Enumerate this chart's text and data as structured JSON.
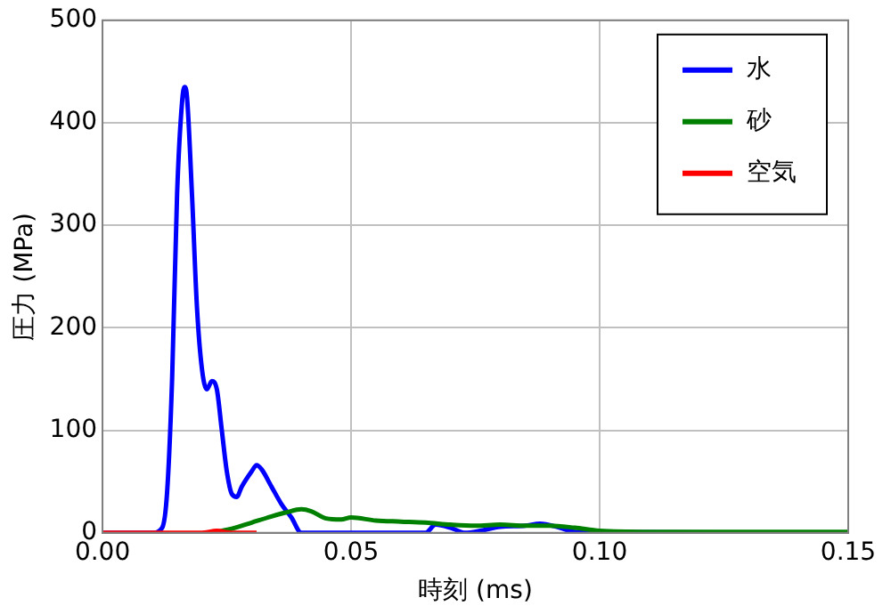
{
  "chart_data": {
    "type": "line",
    "xlabel": "時刻 (ms)",
    "ylabel": "圧力 (MPa)",
    "xlim": [
      0,
      0.15
    ],
    "xticks": [
      {
        "value": 0,
        "label": "0.00"
      },
      {
        "value": 0.05,
        "label": "0.05"
      },
      {
        "value": 0.1,
        "label": "0.10"
      },
      {
        "value": 0.15,
        "label": "0.15"
      }
    ],
    "ylim": [
      0,
      500
    ],
    "yticks": [
      0,
      100,
      200,
      300,
      400,
      500
    ],
    "grid": true,
    "legend": "top right",
    "marker": "none",
    "line_style": "solid",
    "series": [
      {
        "name": "水",
        "color": "#0000ff",
        "x": [
          0,
          0.01,
          0.012,
          0.013,
          0.014,
          0.015,
          0.016,
          0.0165,
          0.017,
          0.018,
          0.019,
          0.02,
          0.021,
          0.022,
          0.023,
          0.024,
          0.025,
          0.026,
          0.027,
          0.028,
          0.03,
          0.031,
          0.032,
          0.034,
          0.036,
          0.038,
          0.04,
          0.065,
          0.067,
          0.07,
          0.073,
          0.076,
          0.08,
          0.085,
          0.088,
          0.092,
          0.095,
          0.15
        ],
        "values": [
          0,
          0,
          5,
          40,
          150,
          330,
          420,
          435,
          425,
          330,
          220,
          160,
          140,
          148,
          140,
          100,
          60,
          38,
          35,
          45,
          60,
          66,
          62,
          45,
          28,
          15,
          0,
          0,
          8,
          5,
          0,
          2,
          6,
          7,
          9,
          5,
          1,
          0
        ]
      },
      {
        "name": "砂",
        "color": "#008000",
        "x": [
          0.022,
          0.026,
          0.03,
          0.034,
          0.037,
          0.04,
          0.042,
          0.045,
          0.048,
          0.05,
          0.055,
          0.06,
          0.065,
          0.07,
          0.075,
          0.08,
          0.085,
          0.09,
          0.095,
          0.1,
          0.11,
          0.12,
          0.13,
          0.14,
          0.15
        ],
        "values": [
          0,
          4,
          10,
          16,
          20,
          23,
          21,
          14,
          13,
          15,
          12,
          11,
          10,
          8,
          7,
          8,
          7,
          7,
          5,
          2,
          1,
          1,
          1,
          1,
          1
        ]
      },
      {
        "name": "空気",
        "color": "#ff0000",
        "x": [
          0,
          0.02,
          0.023,
          0.026,
          0.031
        ],
        "values": [
          0,
          0,
          2,
          0,
          0
        ]
      }
    ]
  }
}
